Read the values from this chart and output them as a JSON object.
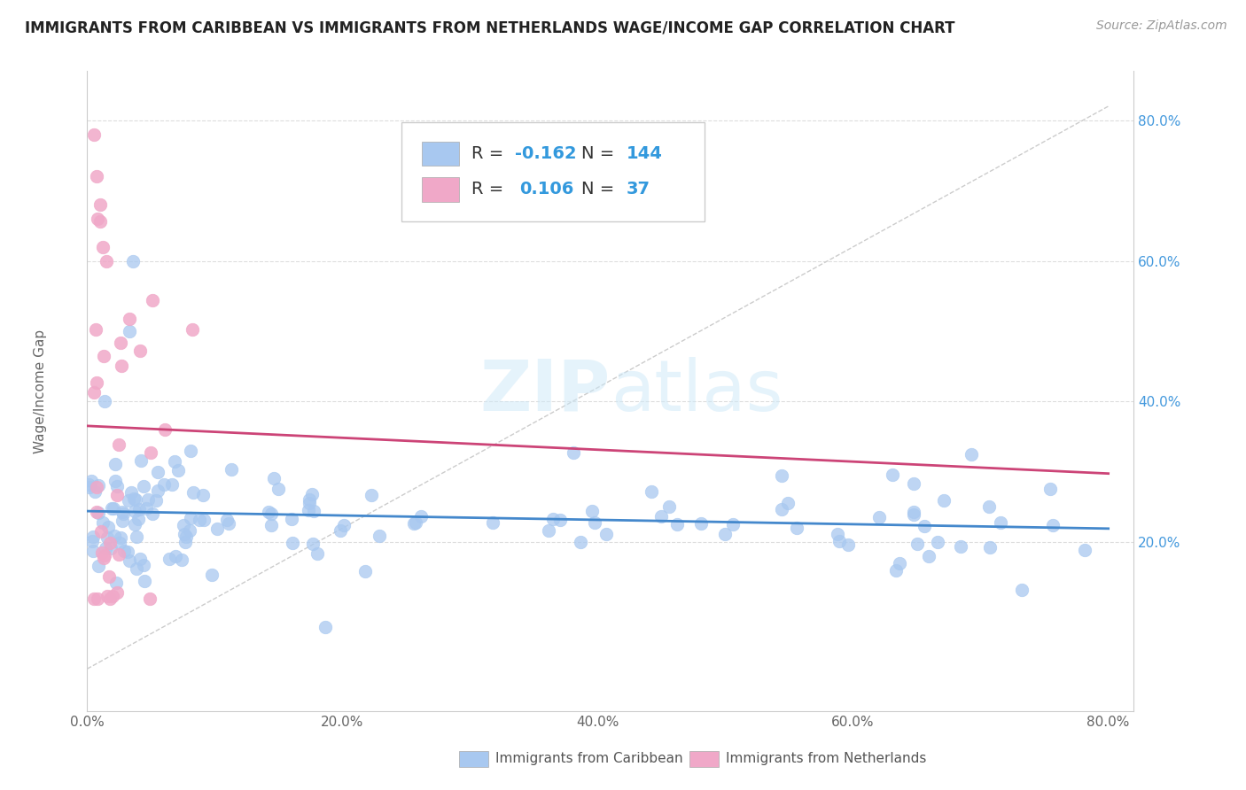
{
  "title": "IMMIGRANTS FROM CARIBBEAN VS IMMIGRANTS FROM NETHERLANDS WAGE/INCOME GAP CORRELATION CHART",
  "source": "Source: ZipAtlas.com",
  "ylabel_label": "Wage/Income Gap",
  "legend_label1": "Immigrants from Caribbean",
  "legend_label2": "Immigrants from Netherlands",
  "color_blue": "#a8c8f0",
  "color_pink": "#f0a8c8",
  "line_blue": "#4488cc",
  "line_pink": "#cc4477",
  "line_dashed": "#cccccc",
  "R1": -0.162,
  "N1": 144,
  "R2": 0.106,
  "N2": 37,
  "xlim_min": 0.0,
  "xlim_max": 0.82,
  "ylim_min": -0.04,
  "ylim_max": 0.87,
  "x_ticks": [
    0.0,
    0.2,
    0.4,
    0.6,
    0.8
  ],
  "y_ticks": [
    0.2,
    0.4,
    0.6,
    0.8
  ],
  "watermark_text": "ZIPatlas",
  "title_fontsize": 12,
  "source_fontsize": 10,
  "tick_fontsize": 11,
  "legend_fontsize": 14,
  "ylabel_fontsize": 11
}
